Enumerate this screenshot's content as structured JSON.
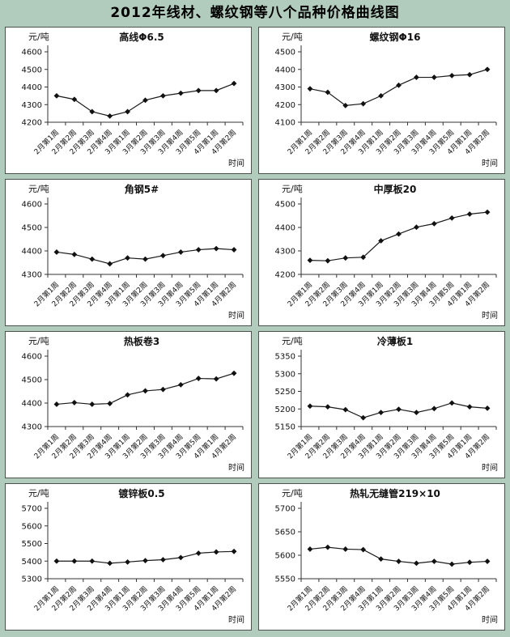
{
  "page_title": "2012年线材、螺纹钢等八个品种价格曲线图",
  "colors": {
    "page_bg": "#b1ccbc",
    "panel_bg": "#ffffff",
    "panel_border": "#4f4f4f",
    "line_color": "#1a1a1a",
    "marker_color": "#111111",
    "axis_color": "#333333"
  },
  "chart_data": [
    {
      "type": "line",
      "title": "高线Φ6.5",
      "ylabel": "元/吨",
      "xlabel": "时间",
      "categories": [
        "2月第1周",
        "2月第2周",
        "2月第3周",
        "2月第4周",
        "3月第1周",
        "3月第2周",
        "3月第3周",
        "3月第4周",
        "3月第5周",
        "4月第1周",
        "4月第2周"
      ],
      "values": [
        4350,
        4330,
        4260,
        4235,
        4260,
        4325,
        4350,
        4365,
        4380,
        4380,
        4420
      ],
      "ylim": [
        4200,
        4600
      ],
      "ytick_step": 100,
      "grid": false,
      "legend": "none"
    },
    {
      "type": "line",
      "title": "螺纹钢Φ16",
      "ylabel": "元/吨",
      "xlabel": "时间",
      "categories": [
        "2月第1周",
        "2月第2周",
        "2月第3周",
        "2月第4周",
        "3月第1周",
        "3月第2周",
        "3月第3周",
        "3月第4周",
        "3月第5周",
        "4月第1周",
        "4月第2周"
      ],
      "values": [
        4290,
        4270,
        4195,
        4205,
        4250,
        4310,
        4355,
        4355,
        4365,
        4370,
        4400
      ],
      "ylim": [
        4100,
        4500
      ],
      "ytick_step": 100,
      "grid": false,
      "legend": "none"
    },
    {
      "type": "line",
      "title": "角钢5#",
      "ylabel": "元/吨",
      "xlabel": "时间",
      "categories": [
        "2月第1周",
        "2月第2周",
        "2月第3周",
        "2月第4周",
        "3月第1周",
        "3月第2周",
        "3月第3周",
        "3月第4周",
        "3月第5周",
        "4月第1周",
        "4月第2周"
      ],
      "values": [
        4395,
        4385,
        4365,
        4345,
        4370,
        4365,
        4380,
        4395,
        4405,
        4410,
        4405
      ],
      "ylim": [
        4300,
        4600
      ],
      "ytick_step": 100,
      "grid": false,
      "legend": "none"
    },
    {
      "type": "line",
      "title": "中厚板20",
      "ylabel": "元/吨",
      "xlabel": "时间",
      "categories": [
        "2月第1周",
        "2月第2周",
        "2月第3周",
        "2月第4周",
        "3月第1周",
        "3月第2周",
        "3月第3周",
        "3月第4周",
        "3月第5周",
        "4月第1周",
        "4月第2周"
      ],
      "values": [
        4260,
        4258,
        4270,
        4273,
        4343,
        4372,
        4401,
        4416,
        4440,
        4457,
        4465
      ],
      "ylim": [
        4200,
        4500
      ],
      "ytick_step": 100,
      "grid": false,
      "legend": "none"
    },
    {
      "type": "line",
      "title": "热板卷3",
      "ylabel": "元/吨",
      "xlabel": "时间",
      "categories": [
        "2月第1周",
        "2月第2周",
        "2月第3周",
        "2月第4周",
        "3月第1周",
        "3月第2周",
        "3月第3周",
        "3月第4周",
        "3月第5周",
        "4月第1周",
        "4月第2周"
      ],
      "values": [
        4395,
        4402,
        4395,
        4398,
        4435,
        4452,
        4458,
        4478,
        4505,
        4503,
        4527
      ],
      "ylim": [
        4300,
        4600
      ],
      "ytick_step": 100,
      "grid": false,
      "legend": "none"
    },
    {
      "type": "line",
      "title": "冷薄板1",
      "ylabel": "元/吨",
      "xlabel": "时间",
      "categories": [
        "2月第1周",
        "2月第2周",
        "2月第3周",
        "2月第4周",
        "3月第1周",
        "3月第2周",
        "3月第3周",
        "3月第4周",
        "3月第5周",
        "4月第1周",
        "4月第2周"
      ],
      "values": [
        5208,
        5206,
        5198,
        5175,
        5190,
        5199,
        5190,
        5201,
        5217,
        5206,
        5202
      ],
      "ylim": [
        5150,
        5350
      ],
      "ytick_step": 50,
      "grid": false,
      "legend": "none"
    },
    {
      "type": "line",
      "title": "镀锌板0.5",
      "ylabel": "元/吨",
      "xlabel": "时间",
      "categories": [
        "2月第1周",
        "2月第2周",
        "2月第3周",
        "2月第4周",
        "3月第1周",
        "3月第2周",
        "3月第3周",
        "3月第4周",
        "3月第5周",
        "4月第1周",
        "4月第2周"
      ],
      "values": [
        5400,
        5400,
        5400,
        5388,
        5395,
        5403,
        5408,
        5420,
        5445,
        5452,
        5455
      ],
      "ylim": [
        5300,
        5700
      ],
      "ytick_step": 100,
      "grid": false,
      "legend": "none"
    },
    {
      "type": "line",
      "title": "热轧无缝管219×10",
      "ylabel": "元/吨",
      "xlabel": "时间",
      "categories": [
        "2月第1周",
        "2月第2周",
        "2月第3周",
        "2月第4周",
        "3月第1周",
        "3月第2周",
        "3月第3周",
        "3月第4周",
        "3月第5周",
        "4月第1周",
        "4月第2周"
      ],
      "values": [
        5613,
        5617,
        5613,
        5612,
        5592,
        5587,
        5583,
        5587,
        5581,
        5585,
        5587
      ],
      "ylim": [
        5550,
        5700
      ],
      "ytick_step": 50,
      "grid": false,
      "legend": "none"
    }
  ]
}
